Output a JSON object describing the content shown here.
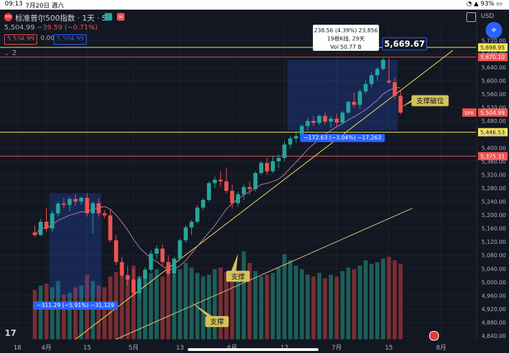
{
  "status_bar": {
    "time": "09:13",
    "date": "7月20日 週六",
    "battery": "93%"
  },
  "symbol": {
    "title": "标准普尔500指数 · 1天 · SP",
    "logo_text": "500",
    "flag_icon": "≈"
  },
  "quote": {
    "price": "5,504.99",
    "change": "−39.59 (−0.71%)"
  },
  "price_boxes": {
    "sell": "5,504.99",
    "spread": "0.00",
    "buy": "5,504.99"
  },
  "indicator_toggle": "⌄ 2",
  "currency": "USD",
  "fab_icon": "crosshair-icon",
  "tv_logo": "17",
  "colors": {
    "up": "#26a69a",
    "down": "#ef5350",
    "accent": "#2962ff",
    "yellow": "#fbe45b",
    "background": "#131722"
  },
  "chart_data": {
    "type": "candlestick",
    "axis": {
      "y_ticks": [
        "5,720.00",
        "5,680.00",
        "5,640.00",
        "5,600.00",
        "5,560.00",
        "5,520.00",
        "5,480.00",
        "5,440.00",
        "5,400.00",
        "5,360.00",
        "5,320.00",
        "5,280.00",
        "5,240.00",
        "5,200.00",
        "5,160.00",
        "5,120.00",
        "5,080.00",
        "5,040.00",
        "5,000.00",
        "4,960.00",
        "4,920.00",
        "4,880.00",
        "4,840.00"
      ],
      "y_tick_values": [
        5720,
        5680,
        5640,
        5600,
        5560,
        5520,
        5480,
        5440,
        5400,
        5360,
        5320,
        5280,
        5240,
        5200,
        5160,
        5120,
        5080,
        5040,
        5000,
        4960,
        4920,
        4880,
        4840
      ],
      "ylim": [
        4830,
        5742
      ],
      "x_ticks": [
        "18",
        "4月",
        "15",
        "5月",
        "13",
        "6月",
        "17",
        "7月",
        "15",
        "8月"
      ],
      "x_tick_index": [
        -3,
        2,
        9,
        17,
        25,
        34,
        43,
        52,
        61,
        70
      ],
      "x_range": [
        -6,
        76
      ]
    },
    "price_labels": [
      {
        "text": "5,698.95",
        "value": 5698.95,
        "kind": "yellow"
      },
      {
        "text": "5,670.10",
        "value": 5670.1,
        "kind": "red"
      },
      {
        "text": "5,504.99",
        "value": 5504.99,
        "kind": "current",
        "tag": "SPX"
      },
      {
        "text": "5,446.53",
        "value": 5446.53,
        "kind": "yellow"
      },
      {
        "text": "5,375.31",
        "value": 5375.31,
        "kind": "red"
      }
    ],
    "horizontal_lines": [
      {
        "value": 5698.95,
        "color": "#fbe45b"
      },
      {
        "value": 5670.1,
        "color": "#ef5350"
      },
      {
        "value": 5446.53,
        "color": "#fbe45b"
      },
      {
        "value": 5375.31,
        "color": "#ef5350"
      }
    ],
    "measure_boxes": [
      {
        "i1": 2.5,
        "i2": 11.5,
        "p_top": 5265,
        "p_bottom": 4953,
        "label": "−311.29 (−5.91%) −31,129"
      },
      {
        "i1": 43.5,
        "i2": 62.5,
        "p_top": 5662,
        "p_bottom": 5452,
        "label": "−172.63 (−3.04%) −17,263",
        "upper_label": [
          "238.56 (4.39%) 23,856",
          "19根K线, 29天",
          "Vol 50.77 B"
        ],
        "peak_label": "5,669.67"
      }
    ],
    "annotations": [
      {
        "text": "支撑",
        "i": 27,
        "p": 4940
      },
      {
        "text": "支撑",
        "i": 35,
        "p": 5085
      },
      {
        "text": "支撑破位",
        "i": 63,
        "p": 5520
      }
    ],
    "candles": [
      {
        "o": 5148,
        "h": 5168,
        "l": 5135,
        "c": 5140
      },
      {
        "o": 5140,
        "h": 5188,
        "l": 5138,
        "c": 5180
      },
      {
        "o": 5180,
        "h": 5220,
        "l": 5150,
        "c": 5160
      },
      {
        "o": 5160,
        "h": 5215,
        "l": 5150,
        "c": 5205
      },
      {
        "o": 5205,
        "h": 5240,
        "l": 5195,
        "c": 5234
      },
      {
        "o": 5234,
        "h": 5250,
        "l": 5220,
        "c": 5230
      },
      {
        "o": 5230,
        "h": 5254,
        "l": 5210,
        "c": 5248
      },
      {
        "o": 5248,
        "h": 5262,
        "l": 5228,
        "c": 5240
      },
      {
        "o": 5240,
        "h": 5255,
        "l": 5230,
        "c": 5251
      },
      {
        "o": 5251,
        "h": 5265,
        "l": 5195,
        "c": 5205
      },
      {
        "o": 5205,
        "h": 5240,
        "l": 5145,
        "c": 5235
      },
      {
        "o": 5235,
        "h": 5250,
        "l": 5195,
        "c": 5205
      },
      {
        "o": 5205,
        "h": 5215,
        "l": 5190,
        "c": 5199
      },
      {
        "o": 5199,
        "h": 5215,
        "l": 5120,
        "c": 5125
      },
      {
        "o": 5125,
        "h": 5140,
        "l": 5050,
        "c": 5060
      },
      {
        "o": 5060,
        "h": 5075,
        "l": 5015,
        "c": 5020
      },
      {
        "o": 5020,
        "h": 5050,
        "l": 4990,
        "c": 5008
      },
      {
        "o": 5008,
        "h": 5040,
        "l": 4955,
        "c": 4968
      },
      {
        "o": 4968,
        "h": 5020,
        "l": 4955,
        "c": 5010
      },
      {
        "o": 5010,
        "h": 5045,
        "l": 4990,
        "c": 5037
      },
      {
        "o": 5037,
        "h": 5095,
        "l": 5030,
        "c": 5085
      },
      {
        "o": 5085,
        "h": 5110,
        "l": 5070,
        "c": 5100
      },
      {
        "o": 5100,
        "h": 5112,
        "l": 5050,
        "c": 5060
      },
      {
        "o": 5060,
        "h": 5080,
        "l": 5020,
        "c": 5025
      },
      {
        "o": 5025,
        "h": 5075,
        "l": 5015,
        "c": 5070
      },
      {
        "o": 5070,
        "h": 5130,
        "l": 5065,
        "c": 5125
      },
      {
        "o": 5125,
        "h": 5170,
        "l": 5118,
        "c": 5163
      },
      {
        "o": 5163,
        "h": 5185,
        "l": 5140,
        "c": 5180
      },
      {
        "o": 5180,
        "h": 5230,
        "l": 5175,
        "c": 5222
      },
      {
        "o": 5222,
        "h": 5250,
        "l": 5215,
        "c": 5245
      },
      {
        "o": 5245,
        "h": 5300,
        "l": 5240,
        "c": 5295
      },
      {
        "o": 5295,
        "h": 5315,
        "l": 5280,
        "c": 5305
      },
      {
        "o": 5305,
        "h": 5330,
        "l": 5285,
        "c": 5300
      },
      {
        "o": 5300,
        "h": 5340,
        "l": 5265,
        "c": 5272
      },
      {
        "o": 5272,
        "h": 5290,
        "l": 5220,
        "c": 5235
      },
      {
        "o": 5235,
        "h": 5270,
        "l": 5225,
        "c": 5262
      },
      {
        "o": 5262,
        "h": 5290,
        "l": 5245,
        "c": 5283
      },
      {
        "o": 5283,
        "h": 5300,
        "l": 5260,
        "c": 5277
      },
      {
        "o": 5277,
        "h": 5330,
        "l": 5270,
        "c": 5325
      },
      {
        "o": 5325,
        "h": 5360,
        "l": 5320,
        "c": 5355
      },
      {
        "o": 5355,
        "h": 5370,
        "l": 5320,
        "c": 5330
      },
      {
        "o": 5330,
        "h": 5375,
        "l": 5325,
        "c": 5360
      },
      {
        "o": 5360,
        "h": 5380,
        "l": 5340,
        "c": 5370
      },
      {
        "o": 5370,
        "h": 5420,
        "l": 5360,
        "c": 5410
      },
      {
        "o": 5410,
        "h": 5435,
        "l": 5400,
        "c": 5428
      },
      {
        "o": 5428,
        "h": 5450,
        "l": 5415,
        "c": 5435
      },
      {
        "o": 5435,
        "h": 5470,
        "l": 5430,
        "c": 5465
      },
      {
        "o": 5465,
        "h": 5490,
        "l": 5450,
        "c": 5480
      },
      {
        "o": 5480,
        "h": 5495,
        "l": 5465,
        "c": 5474
      },
      {
        "o": 5474,
        "h": 5500,
        "l": 5468,
        "c": 5495
      },
      {
        "o": 5495,
        "h": 5505,
        "l": 5470,
        "c": 5478
      },
      {
        "o": 5478,
        "h": 5495,
        "l": 5460,
        "c": 5487
      },
      {
        "o": 5487,
        "h": 5500,
        "l": 5465,
        "c": 5475
      },
      {
        "o": 5475,
        "h": 5510,
        "l": 5470,
        "c": 5505
      },
      {
        "o": 5505,
        "h": 5540,
        "l": 5500,
        "c": 5537
      },
      {
        "o": 5537,
        "h": 5565,
        "l": 5520,
        "c": 5528
      },
      {
        "o": 5528,
        "h": 5575,
        "l": 5515,
        "c": 5568
      },
      {
        "o": 5568,
        "h": 5600,
        "l": 5560,
        "c": 5590
      },
      {
        "o": 5590,
        "h": 5625,
        "l": 5580,
        "c": 5616
      },
      {
        "o": 5616,
        "h": 5640,
        "l": 5600,
        "c": 5635
      },
      {
        "o": 5635,
        "h": 5668,
        "l": 5630,
        "c": 5662
      },
      {
        "o": 5600,
        "h": 5665,
        "l": 5590,
        "c": 5595
      },
      {
        "o": 5595,
        "h": 5610,
        "l": 5545,
        "c": 5555
      },
      {
        "o": 5555,
        "h": 5570,
        "l": 5500,
        "c": 5505
      }
    ],
    "volumes": [
      55,
      60,
      62,
      58,
      65,
      50,
      52,
      58,
      60,
      72,
      65,
      60,
      58,
      70,
      75,
      80,
      72,
      82,
      70,
      68,
      74,
      78,
      70,
      76,
      72,
      78,
      85,
      80,
      74,
      70,
      72,
      78,
      80,
      75,
      70,
      74,
      98,
      85,
      76,
      70,
      72,
      74,
      80,
      95,
      88,
      82,
      78,
      72,
      70,
      74,
      68,
      72,
      70,
      76,
      80,
      78,
      82,
      88,
      84,
      86,
      90,
      92,
      88,
      84
    ]
  }
}
